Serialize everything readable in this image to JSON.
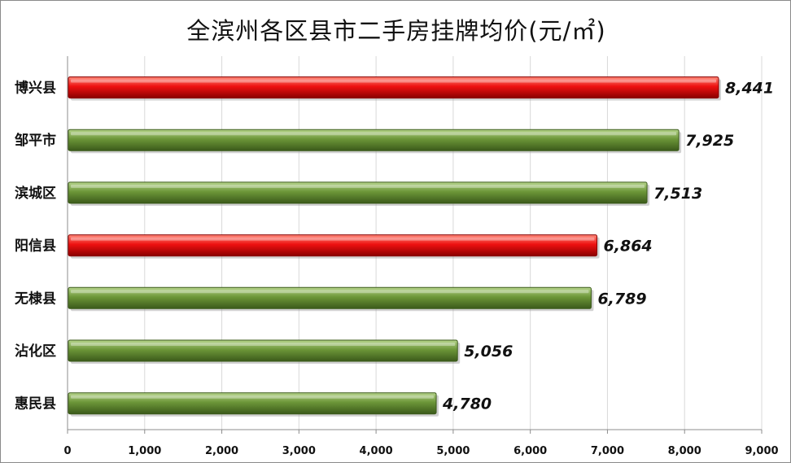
{
  "colors": {
    "green_light": "#b5d48a",
    "green": "#6c9638",
    "green_dark": "#3b5a1a",
    "red_light": "#ff8a7a",
    "red": "#ee1111",
    "red_dark": "#8a0000"
  },
  "chart_data": {
    "type": "bar",
    "orientation": "horizontal",
    "title": "全滨州各区县市二手房挂牌均价(元/㎡)",
    "categories": [
      "博兴县",
      "邹平市",
      "滨城区",
      "阳信县",
      "无棣县",
      "沾化区",
      "惠民县"
    ],
    "values": [
      8441,
      7925,
      7513,
      6864,
      6789,
      5056,
      4780
    ],
    "value_labels": [
      "8,441",
      "7,925",
      "7,513",
      "6,864",
      "6,789",
      "5,056",
      "4,780"
    ],
    "highlight": [
      true,
      false,
      false,
      true,
      false,
      false,
      false
    ],
    "xlim": [
      0,
      9000
    ],
    "xticks": [
      0,
      1000,
      2000,
      3000,
      4000,
      5000,
      6000,
      7000,
      8000,
      9000
    ],
    "xtick_labels": [
      "0",
      "1,000",
      "2,000",
      "3,000",
      "4,000",
      "5,000",
      "6,000",
      "7,000",
      "8,000",
      "9,000"
    ],
    "grid": "vertical",
    "legend": "none"
  }
}
